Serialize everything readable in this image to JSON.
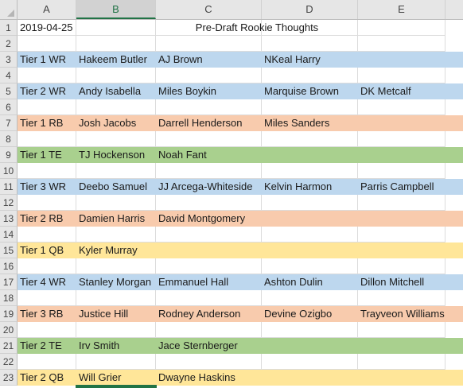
{
  "columns": [
    "A",
    "B",
    "C",
    "D",
    "E"
  ],
  "selected_column": "B",
  "colors": {
    "WR": "#bdd7ee",
    "RB": "#f8cbad",
    "TE": "#a9d08e",
    "QB": "#ffe699"
  },
  "header_row": {
    "date": "2019-04-25",
    "title": "Pre-Draft Rookie Thoughts"
  },
  "rows": [
    {
      "num": "1"
    },
    {
      "num": "2",
      "tier": "",
      "players": []
    },
    {
      "num": "3",
      "tier": "Tier 1 WR",
      "pos": "WR",
      "players": [
        "Hakeem Butler",
        "AJ Brown",
        "NKeal Harry",
        ""
      ]
    },
    {
      "num": "4",
      "tier": "",
      "players": []
    },
    {
      "num": "5",
      "tier": "Tier 2 WR",
      "pos": "WR",
      "players": [
        "Andy Isabella",
        "Miles Boykin",
        "Marquise Brown",
        "DK Metcalf"
      ]
    },
    {
      "num": "6",
      "tier": "",
      "players": []
    },
    {
      "num": "7",
      "tier": "Tier 1 RB",
      "pos": "RB",
      "players": [
        "Josh Jacobs",
        "Darrell Henderson",
        "Miles Sanders",
        ""
      ]
    },
    {
      "num": "8",
      "tier": "",
      "players": []
    },
    {
      "num": "9",
      "tier": "Tier 1 TE",
      "pos": "TE",
      "players": [
        "TJ Hockenson",
        "Noah Fant",
        "",
        ""
      ]
    },
    {
      "num": "10",
      "tier": "",
      "players": []
    },
    {
      "num": "11",
      "tier": "Tier 3 WR",
      "pos": "WR",
      "players": [
        "Deebo Samuel",
        "JJ Arcega-Whiteside",
        "Kelvin Harmon",
        "Parris Campbell"
      ]
    },
    {
      "num": "12",
      "tier": "",
      "players": []
    },
    {
      "num": "13",
      "tier": "Tier 2 RB",
      "pos": "RB",
      "players": [
        "Damien Harris",
        "David Montgomery",
        "",
        ""
      ]
    },
    {
      "num": "14",
      "tier": "",
      "players": []
    },
    {
      "num": "15",
      "tier": "Tier 1 QB",
      "pos": "QB",
      "players": [
        "Kyler Murray",
        "",
        "",
        ""
      ]
    },
    {
      "num": "16",
      "tier": "",
      "players": []
    },
    {
      "num": "17",
      "tier": "Tier 4 WR",
      "pos": "WR",
      "players": [
        "Stanley Morgan",
        "Emmanuel Hall",
        "Ashton Dulin",
        "Dillon Mitchell"
      ]
    },
    {
      "num": "18",
      "tier": "",
      "players": []
    },
    {
      "num": "19",
      "tier": "Tier 3 RB",
      "pos": "RB",
      "players": [
        "Justice Hill",
        "Rodney Anderson",
        "Devine Ozigbo",
        "Trayveon Williams"
      ]
    },
    {
      "num": "20",
      "tier": "",
      "players": []
    },
    {
      "num": "21",
      "tier": "Tier 2 TE",
      "pos": "TE",
      "players": [
        "Irv Smith",
        "Jace Sternberger",
        "",
        ""
      ]
    },
    {
      "num": "22",
      "tier": "",
      "players": []
    },
    {
      "num": "23",
      "tier": "Tier 2 QB",
      "pos": "QB",
      "players": [
        "Will Grier",
        "Dwayne Haskins",
        "",
        ""
      ]
    }
  ]
}
